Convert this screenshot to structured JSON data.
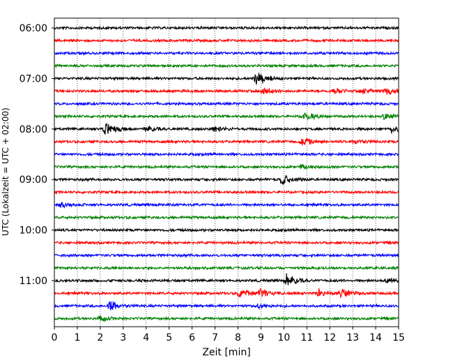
{
  "chart_data": {
    "type": "line",
    "title": "",
    "xlabel": "Zeit  [min]",
    "ylabel": "UTC (Lokalzeit = UTC + 02:00)",
    "xlim": [
      0,
      15
    ],
    "x_ticks": [
      0,
      1,
      2,
      3,
      4,
      5,
      6,
      7,
      8,
      9,
      10,
      11,
      12,
      13,
      14,
      15
    ],
    "x_tick_labels": [
      "0",
      "1",
      "2",
      "3",
      "4",
      "5",
      "6",
      "7",
      "8",
      "9",
      "10",
      "11",
      "12",
      "13",
      "14",
      "15"
    ],
    "y_tick_labels": [
      "06:00",
      "07:00",
      "08:00",
      "09:00",
      "10:00",
      "11:00"
    ],
    "grid": "vertical dotted",
    "trace_interval_min": 15,
    "trace_count": 24,
    "color_cycle": [
      "#000000",
      "#ff0000",
      "#0000ff",
      "#008000"
    ],
    "traces": [
      {
        "start": "06:00",
        "events": []
      },
      {
        "start": "06:15",
        "events": []
      },
      {
        "start": "06:30",
        "events": []
      },
      {
        "start": "06:45",
        "events": []
      },
      {
        "start": "07:00",
        "events": [
          {
            "t": 8.8,
            "amp": 1.0
          }
        ]
      },
      {
        "start": "07:15",
        "events": [
          {
            "t": 9.1,
            "amp": 0.5
          },
          {
            "t": 12.2,
            "amp": 0.4
          },
          {
            "t": 13.4,
            "amp": 0.4
          },
          {
            "t": 14.5,
            "amp": 0.4
          }
        ]
      },
      {
        "start": "07:30",
        "events": []
      },
      {
        "start": "07:45",
        "events": [
          {
            "t": 10.9,
            "amp": 0.6
          },
          {
            "t": 14.4,
            "amp": 0.4
          }
        ]
      },
      {
        "start": "08:00",
        "events": [
          {
            "t": 2.2,
            "amp": 0.9
          },
          {
            "t": 4.0,
            "amp": 0.4
          },
          {
            "t": 7.0,
            "amp": 0.4
          },
          {
            "t": 14.7,
            "amp": 0.4
          }
        ]
      },
      {
        "start": "08:15",
        "events": [
          {
            "t": 10.8,
            "amp": 0.5
          },
          {
            "t": 13.1,
            "amp": 0.4
          }
        ]
      },
      {
        "start": "08:30",
        "events": []
      },
      {
        "start": "08:45",
        "events": [
          {
            "t": 10.8,
            "amp": 0.3
          }
        ]
      },
      {
        "start": "09:00",
        "events": [
          {
            "t": 9.9,
            "amp": 0.8
          }
        ]
      },
      {
        "start": "09:15",
        "events": []
      },
      {
        "start": "09:30",
        "events": [
          {
            "t": 0.3,
            "amp": 0.3
          }
        ]
      },
      {
        "start": "09:45",
        "events": []
      },
      {
        "start": "10:00",
        "events": []
      },
      {
        "start": "10:15",
        "events": []
      },
      {
        "start": "10:30",
        "events": []
      },
      {
        "start": "10:45",
        "events": []
      },
      {
        "start": "11:00",
        "events": [
          {
            "t": 10.1,
            "amp": 0.9
          },
          {
            "t": 14.5,
            "amp": 0.4
          }
        ]
      },
      {
        "start": "11:15",
        "events": [
          {
            "t": 8.1,
            "amp": 0.7
          },
          {
            "t": 9.0,
            "amp": 0.5
          },
          {
            "t": 11.5,
            "amp": 0.5
          },
          {
            "t": 12.5,
            "amp": 0.6
          }
        ]
      },
      {
        "start": "11:30",
        "events": [
          {
            "t": 2.45,
            "amp": 0.7
          },
          {
            "t": 8.9,
            "amp": 0.3
          }
        ]
      },
      {
        "start": "11:45",
        "events": [
          {
            "t": 2.0,
            "amp": 0.3
          }
        ]
      }
    ]
  }
}
